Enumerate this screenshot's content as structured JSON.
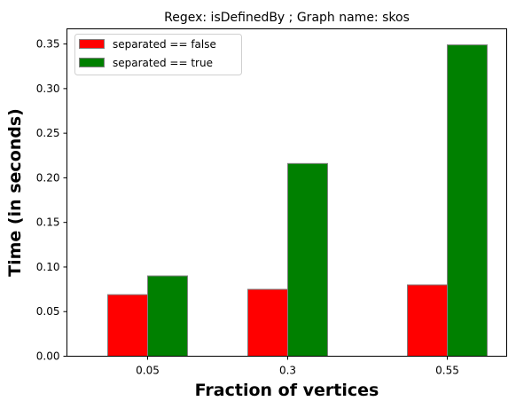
{
  "chart_data": {
    "type": "bar",
    "title": "Regex: isDefinedBy ; Graph name: skos",
    "xlabel": "Fraction of vertices",
    "ylabel": "Time (in seconds)",
    "categories": [
      "0.05",
      "0.3",
      "0.55"
    ],
    "series": [
      {
        "name": "separated == false",
        "color": "#ff0000",
        "values": [
          0.069,
          0.075,
          0.08
        ]
      },
      {
        "name": "separated == true",
        "color": "#008000",
        "values": [
          0.09,
          0.216,
          0.349
        ]
      }
    ],
    "ylim": [
      0,
      0.367
    ],
    "yticks": [
      "0.00",
      "0.05",
      "0.10",
      "0.15",
      "0.20",
      "0.25",
      "0.30",
      "0.35"
    ],
    "grid": false,
    "legend_position": "top-left",
    "bar_edge_color": "#808080"
  }
}
